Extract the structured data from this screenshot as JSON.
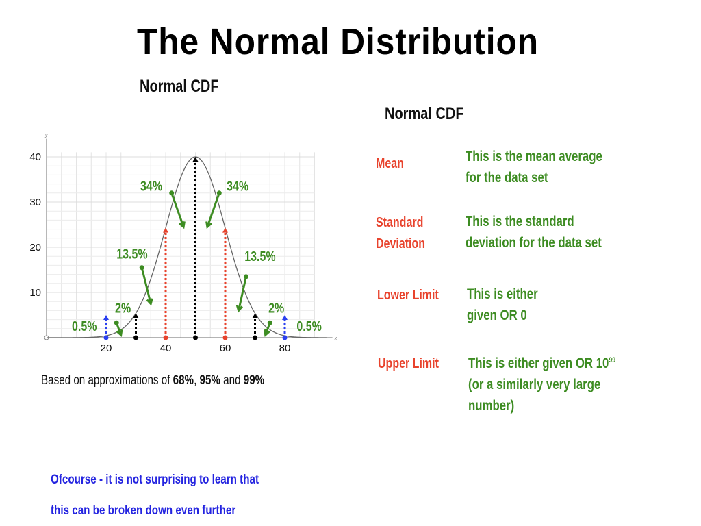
{
  "title": "The Normal Distribution",
  "left_subtitle": "Normal CDF",
  "right_subtitle": "Normal CDF",
  "chart_data": {
    "type": "line",
    "title": "",
    "xlabel": "x",
    "ylabel": "y",
    "xlim": [
      0,
      94
    ],
    "ylim": [
      0,
      43
    ],
    "x_ticks": [
      "20",
      "40",
      "60",
      "80"
    ],
    "y_ticks": [
      "10",
      "20",
      "30",
      "40"
    ],
    "curve": {
      "mean": 50,
      "sd": 10,
      "peak": 40
    },
    "markers": [
      {
        "x": 20,
        "color": "#2a3ff0",
        "top": 5
      },
      {
        "x": 30,
        "color": "#000000",
        "top": 5.4
      },
      {
        "x": 40,
        "color": "#e8432d",
        "top": 24.3
      },
      {
        "x": 50,
        "color": "#000000",
        "top": 40
      },
      {
        "x": 60,
        "color": "#e8432d",
        "top": 24.3
      },
      {
        "x": 70,
        "color": "#000000",
        "top": 5.4
      },
      {
        "x": 80,
        "color": "#2a3ff0",
        "top": 5
      }
    ],
    "annotations": [
      "0.5%",
      "2%",
      "13.5%",
      "34%",
      "34%",
      "13.5%",
      "2%",
      "0.5%"
    ],
    "grid": true
  },
  "note": {
    "prefix": "Based on approximations of ",
    "p1": "68%",
    "sep1": ", ",
    "p2": "95%",
    "sep2": " and ",
    "p3": "99%"
  },
  "definitions": [
    {
      "term": [
        "Mean"
      ],
      "desc": [
        "This is the mean average",
        "for the data set"
      ]
    },
    {
      "term": [
        "Standard",
        "Deviation"
      ],
      "desc": [
        "This is the standard",
        "deviation for the data set"
      ]
    },
    {
      "term": [
        "Lower Limit"
      ],
      "desc": [
        "This is either",
        "given OR 0"
      ]
    },
    {
      "term": [
        "Upper Limit"
      ],
      "desc": [
        "This is either given OR 10",
        "(or a similarly very large",
        "number)"
      ],
      "exponent": "99"
    }
  ],
  "footer": [
    "Ofcourse - it is not surprising to learn that",
    "this can be broken down even further"
  ],
  "colors": {
    "green": "#3d8c22",
    "red": "#e8432d",
    "blue": "#2424e0"
  }
}
